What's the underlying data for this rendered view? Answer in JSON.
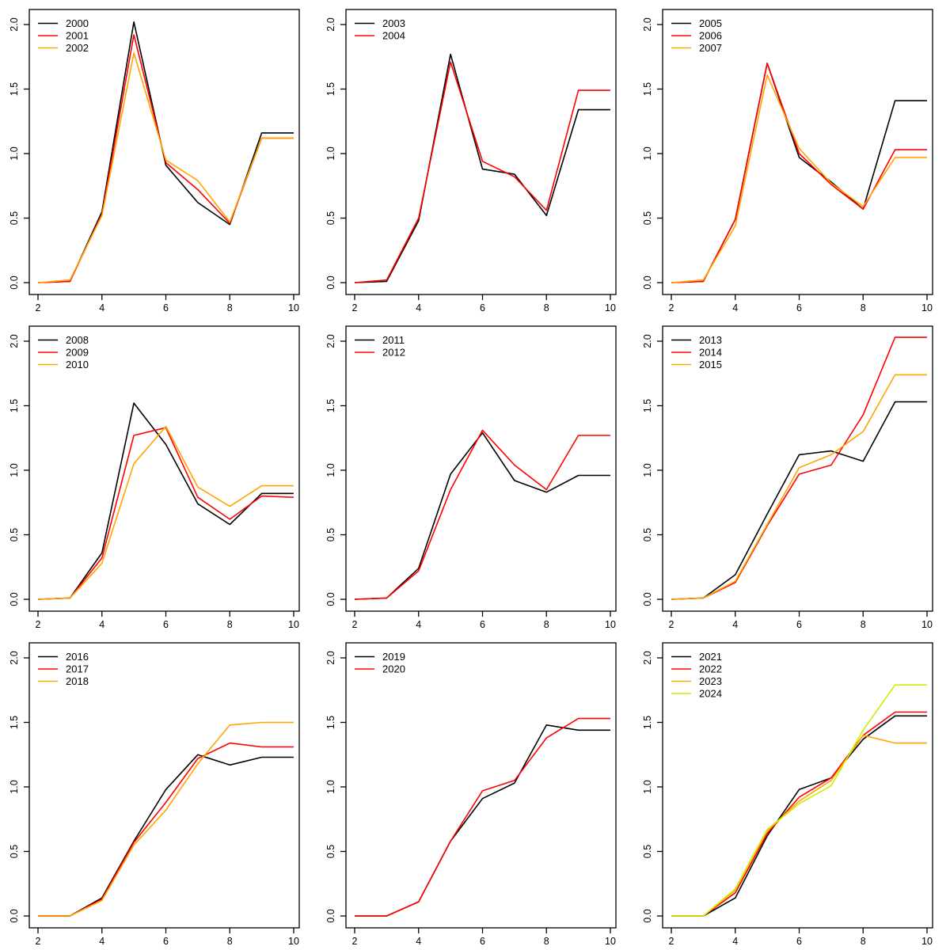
{
  "figure": {
    "background": "#FFFFFF",
    "rows": 3,
    "cols": 3,
    "description": "3x3 grid of line charts, yearly curves 2000-2024"
  },
  "palette": {
    "black": "#000000",
    "red": "#FF0000",
    "orange": "#FFA500",
    "yellow_green": "#CCEE00"
  },
  "axes_defaults": {
    "xlim": [
      2,
      10
    ],
    "ylim": [
      0,
      2.05
    ],
    "xticks": [
      2,
      4,
      6,
      8,
      10
    ],
    "xtick_labels": [
      "2",
      "4",
      "6",
      "8",
      "10"
    ],
    "ytick_values": [
      0,
      0.5,
      1,
      1.5,
      2
    ],
    "ytick_labels": [
      "0.0",
      "0.5",
      "1.0",
      "1.5",
      "2.0"
    ],
    "ytick_label_rotation": -90,
    "xlabel": "",
    "ylabel": "",
    "grid": false,
    "legend_position": "top-left",
    "legend_box": false
  },
  "chart_data": [
    {
      "type": "line",
      "x": [
        2,
        3,
        4,
        5,
        6,
        7,
        8,
        9,
        10
      ],
      "series": [
        {
          "name": "2000",
          "color": "#000000",
          "values": [
            0.0,
            0.01,
            0.55,
            2.02,
            0.91,
            0.62,
            0.45,
            1.16,
            1.16
          ]
        },
        {
          "name": "2001",
          "color": "#FF0000",
          "values": [
            0.0,
            0.01,
            0.53,
            1.92,
            0.93,
            0.72,
            0.46,
            1.12,
            1.12
          ]
        },
        {
          "name": "2002",
          "color": "#FFA500",
          "values": [
            0.0,
            0.02,
            0.52,
            1.78,
            0.95,
            0.79,
            0.47,
            1.12,
            1.12
          ]
        }
      ]
    },
    {
      "type": "line",
      "x": [
        2,
        3,
        4,
        5,
        6,
        7,
        8,
        9,
        10
      ],
      "series": [
        {
          "name": "2003",
          "color": "#000000",
          "values": [
            0.0,
            0.01,
            0.48,
            1.77,
            0.88,
            0.84,
            0.52,
            1.34,
            1.34
          ]
        },
        {
          "name": "2004",
          "color": "#FF0000",
          "values": [
            0.0,
            0.02,
            0.5,
            1.71,
            0.94,
            0.82,
            0.56,
            1.49,
            1.49
          ]
        }
      ]
    },
    {
      "type": "line",
      "x": [
        2,
        3,
        4,
        5,
        6,
        7,
        8,
        9,
        10
      ],
      "series": [
        {
          "name": "2005",
          "color": "#000000",
          "values": [
            0.0,
            0.01,
            0.49,
            1.7,
            0.97,
            0.78,
            0.57,
            1.41,
            1.41
          ]
        },
        {
          "name": "2006",
          "color": "#FF0000",
          "values": [
            0.0,
            0.01,
            0.49,
            1.7,
            1.0,
            0.76,
            0.57,
            1.03,
            1.03
          ]
        },
        {
          "name": "2007",
          "color": "#FFA500",
          "values": [
            0.0,
            0.02,
            0.44,
            1.61,
            1.04,
            0.77,
            0.59,
            0.97,
            0.97
          ]
        }
      ]
    },
    {
      "type": "line",
      "x": [
        2,
        3,
        4,
        5,
        6,
        7,
        8,
        9,
        10
      ],
      "series": [
        {
          "name": "2008",
          "color": "#000000",
          "values": [
            0.0,
            0.01,
            0.36,
            1.52,
            1.2,
            0.74,
            0.58,
            0.82,
            0.82
          ]
        },
        {
          "name": "2009",
          "color": "#FF0000",
          "values": [
            0.0,
            0.01,
            0.32,
            1.27,
            1.33,
            0.79,
            0.62,
            0.8,
            0.79
          ]
        },
        {
          "name": "2010",
          "color": "#FFA500",
          "values": [
            0.0,
            0.01,
            0.28,
            1.05,
            1.34,
            0.87,
            0.72,
            0.88,
            0.88
          ]
        }
      ]
    },
    {
      "type": "line",
      "x": [
        2,
        3,
        4,
        5,
        6,
        7,
        8,
        9,
        10
      ],
      "series": [
        {
          "name": "2011",
          "color": "#000000",
          "values": [
            0.0,
            0.01,
            0.24,
            0.97,
            1.29,
            0.92,
            0.83,
            0.96,
            0.96
          ]
        },
        {
          "name": "2012",
          "color": "#FF0000",
          "values": [
            0.0,
            0.01,
            0.22,
            0.85,
            1.31,
            1.04,
            0.85,
            1.27,
            1.27
          ]
        }
      ]
    },
    {
      "type": "line",
      "x": [
        2,
        3,
        4,
        5,
        6,
        7,
        8,
        9,
        10
      ],
      "series": [
        {
          "name": "2013",
          "color": "#000000",
          "values": [
            0.0,
            0.01,
            0.19,
            0.66,
            1.12,
            1.15,
            1.07,
            1.53,
            1.53
          ]
        },
        {
          "name": "2014",
          "color": "#FF0000",
          "values": [
            0.0,
            0.01,
            0.13,
            0.57,
            0.97,
            1.04,
            1.43,
            2.03,
            2.03
          ]
        },
        {
          "name": "2015",
          "color": "#FFA500",
          "values": [
            0.0,
            0.01,
            0.14,
            0.58,
            1.02,
            1.12,
            1.3,
            1.74,
            1.74
          ]
        }
      ]
    },
    {
      "type": "line",
      "x": [
        2,
        3,
        4,
        5,
        6,
        7,
        8,
        9,
        10
      ],
      "series": [
        {
          "name": "2016",
          "color": "#000000",
          "values": [
            0.0,
            0.0,
            0.14,
            0.58,
            0.98,
            1.25,
            1.17,
            1.23,
            1.23
          ]
        },
        {
          "name": "2017",
          "color": "#FF0000",
          "values": [
            0.0,
            0.0,
            0.13,
            0.57,
            0.88,
            1.22,
            1.34,
            1.31,
            1.31
          ]
        },
        {
          "name": "2018",
          "color": "#FFA500",
          "values": [
            0.0,
            0.0,
            0.12,
            0.55,
            0.82,
            1.18,
            1.48,
            1.5,
            1.5
          ]
        }
      ]
    },
    {
      "type": "line",
      "x": [
        2,
        3,
        4,
        5,
        6,
        7,
        8,
        9,
        10
      ],
      "series": [
        {
          "name": "2019",
          "color": "#000000",
          "values": [
            0.0,
            0.0,
            0.11,
            0.58,
            0.91,
            1.03,
            1.48,
            1.44,
            1.44
          ]
        },
        {
          "name": "2020",
          "color": "#FF0000",
          "values": [
            0.0,
            0.0,
            0.11,
            0.58,
            0.97,
            1.05,
            1.38,
            1.53,
            1.53
          ]
        }
      ]
    },
    {
      "type": "line",
      "x": [
        2,
        3,
        4,
        5,
        6,
        7,
        8,
        9,
        10
      ],
      "series": [
        {
          "name": "2021",
          "color": "#000000",
          "values": [
            0.0,
            0.0,
            0.14,
            0.62,
            0.98,
            1.07,
            1.37,
            1.55,
            1.55
          ]
        },
        {
          "name": "2022",
          "color": "#FF0000",
          "values": [
            0.0,
            0.0,
            0.18,
            0.64,
            0.92,
            1.07,
            1.4,
            1.58,
            1.58
          ]
        },
        {
          "name": "2023",
          "color": "#FFA500",
          "values": [
            0.0,
            0.0,
            0.2,
            0.66,
            0.89,
            1.05,
            1.4,
            1.34,
            1.34
          ]
        },
        {
          "name": "2024",
          "color": "#CCEE00",
          "values": [
            0.0,
            0.0,
            0.21,
            0.67,
            0.87,
            1.01,
            1.44,
            1.79,
            1.79
          ]
        }
      ]
    }
  ]
}
